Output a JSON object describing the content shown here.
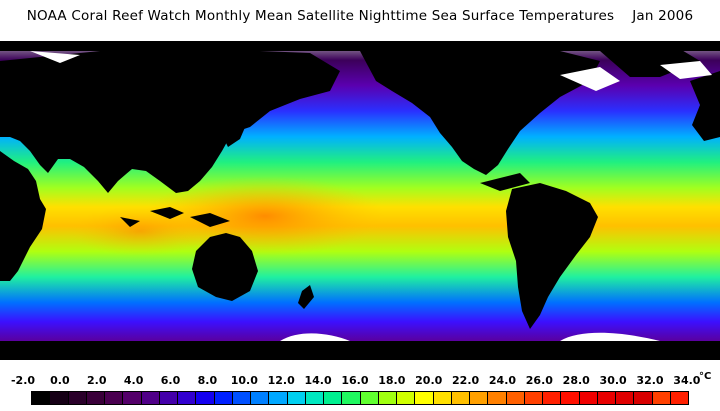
{
  "title": "NOAA Coral Reef Watch Monthly Mean Satellite Nighttime Sea Surface Temperatures    Jan 2006",
  "colorbar": {
    "ticks": [
      "-2.0",
      "0.0",
      "2.0",
      "4.0",
      "6.0",
      "8.0",
      "10.0",
      "12.0",
      "14.0",
      "16.0",
      "18.0",
      "20.0",
      "22.0",
      "24.0",
      "26.0",
      "28.0",
      "30.0",
      "32.0",
      "34.0"
    ],
    "unit": "°C",
    "colors": [
      "#000000",
      "#160016",
      "#2a002a",
      "#3a003a",
      "#4a0050",
      "#54006a",
      "#500088",
      "#4400aa",
      "#3200d0",
      "#1400f0",
      "#0020ff",
      "#0050ff",
      "#0080ff",
      "#00a8ff",
      "#00d0f0",
      "#00e8c0",
      "#00f090",
      "#20f860",
      "#60ff30",
      "#a0ff10",
      "#d0ff00",
      "#ffff00",
      "#ffe000",
      "#ffc000",
      "#ffa000",
      "#ff8000",
      "#ff6000",
      "#ff4000",
      "#ff2000",
      "#ff1000",
      "#f00000",
      "#e80000",
      "#e00000",
      "#d80000",
      "#ff4000",
      "#ff2000"
    ]
  },
  "map": {
    "land_color": "#000000",
    "ice_color": "#ffffff",
    "sst_gradient_colors": [
      "#d8d8d8",
      "#3c005a",
      "#5400a8",
      "#2a00ff",
      "#0060ff",
      "#00c8ff",
      "#00f0a0",
      "#60ff20",
      "#d0ff00",
      "#ffd800",
      "#ff8c00"
    ]
  }
}
